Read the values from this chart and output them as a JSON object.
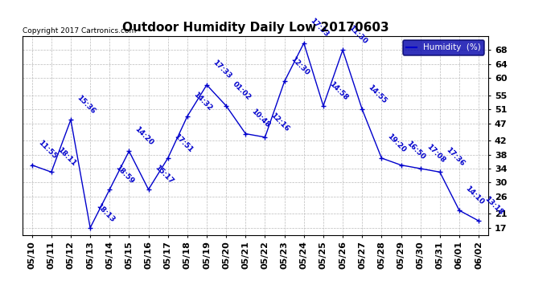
{
  "title": "Outdoor Humidity Daily Low 20170603",
  "copyright": "Copyright 2017 Cartronics.com",
  "legend_label": "Humidity  (%)",
  "x_labels": [
    "05/10",
    "05/11",
    "05/12",
    "05/13",
    "05/14",
    "05/15",
    "05/16",
    "05/17",
    "05/18",
    "05/19",
    "05/20",
    "05/21",
    "05/22",
    "05/23",
    "05/24",
    "05/25",
    "05/26",
    "05/27",
    "05/28",
    "05/29",
    "05/30",
    "05/31",
    "06/01",
    "06/02"
  ],
  "y_values": [
    35,
    33,
    48,
    17,
    28,
    39,
    28,
    37,
    49,
    58,
    52,
    44,
    43,
    59,
    70,
    52,
    68,
    51,
    37,
    35,
    34,
    33,
    22,
    19
  ],
  "point_labels": [
    "11:55",
    "18:11",
    "15:36",
    "18:13",
    "18:59",
    "14:20",
    "15:17",
    "17:51",
    "14:32",
    "17:33",
    "01:02",
    "10:48",
    "12:16",
    "12:30",
    "17:33",
    "14:58",
    "11:30",
    "14:55",
    "19:20",
    "16:50",
    "17:08",
    "17:36",
    "14:10",
    "13:18"
  ],
  "ylim_min": 15,
  "ylim_max": 72,
  "yticks": [
    17,
    21,
    26,
    30,
    34,
    38,
    42,
    47,
    51,
    55,
    60,
    64,
    68
  ],
  "line_color": "#0000cc",
  "bg_color": "#ffffff",
  "grid_color": "#bbbbbb",
  "title_fontsize": 11,
  "tick_fontsize": 8,
  "label_fontsize": 7
}
